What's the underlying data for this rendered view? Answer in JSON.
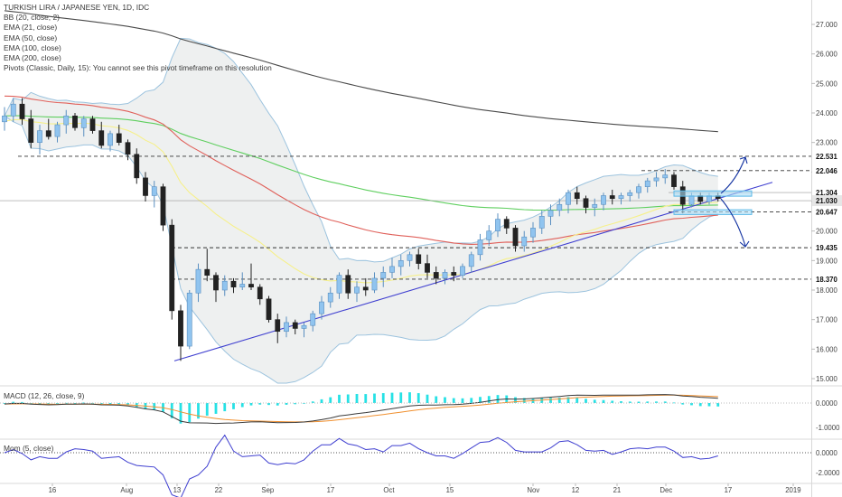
{
  "legend": {
    "title": "TURKISH LIRA / JAPANESE YEN, 1D, IDC",
    "bb": "BB (20, close, 2)",
    "ema21": "EMA (21, close)",
    "ema50": "EMA (50, close)",
    "ema100": "EMA (100, close)",
    "ema200": "EMA (200, close)",
    "pivots": "Pivots (Classic, Daily, 15): You cannot see this pivot timeframe on this resolution"
  },
  "macd_title": "MACD (12, 26, close, 9)",
  "mom_title": "Mom (5, close)",
  "colors": {
    "up_candle": "#90c4ef",
    "down_candle": "#222222",
    "ema21": "#f6f08a",
    "ema50": "#e0605a",
    "ema100": "#5fcf5f",
    "ema200": "#4a4a4a",
    "bb_band": "#9cc3de",
    "bb_fill": "#eef0f0",
    "trendline": "#3f3fd0",
    "macd_hist": "#27e1e5",
    "macd_line": "#3a3a3a",
    "signal_line": "#f09030",
    "mom_line": "#3f3fd0",
    "arrow": "#1030a0",
    "box": "#5ab8e8"
  },
  "chart_data": [
    {
      "type": "candlestick",
      "title": "TURKISH LIRA / JAPANESE YEN, 1D, IDC",
      "x_tick_labels": [
        "16",
        "Aug",
        "13",
        "22",
        "Sep",
        "17",
        "Oct",
        "15",
        "Nov",
        "12",
        "21",
        "Dec",
        "17",
        "2019"
      ],
      "y_tick_labels": [
        "27.000",
        "26.000",
        "25.000",
        "24.000",
        "23.000",
        "22.000",
        "21.000",
        "20.000",
        "19.000",
        "18.000",
        "17.000",
        "16.000",
        "15.000"
      ],
      "ylim": [
        14.8,
        27.5
      ],
      "price_levels": [
        "22.531",
        "22.046",
        "21.304",
        "21.030",
        "20.647",
        "19.435",
        "18.370"
      ],
      "candles": [
        {
          "o": 23.7,
          "h": 24.2,
          "l": 23.4,
          "c": 23.9
        },
        {
          "o": 23.9,
          "h": 24.5,
          "l": 23.7,
          "c": 24.3
        },
        {
          "o": 24.3,
          "h": 24.5,
          "l": 23.6,
          "c": 23.8
        },
        {
          "o": 23.8,
          "h": 24.1,
          "l": 22.8,
          "c": 23.0
        },
        {
          "o": 23.0,
          "h": 23.6,
          "l": 22.6,
          "c": 23.4
        },
        {
          "o": 23.4,
          "h": 23.8,
          "l": 23.1,
          "c": 23.2
        },
        {
          "o": 23.2,
          "h": 23.7,
          "l": 23.0,
          "c": 23.6
        },
        {
          "o": 23.6,
          "h": 24.1,
          "l": 23.3,
          "c": 23.9
        },
        {
          "o": 23.9,
          "h": 24.0,
          "l": 23.4,
          "c": 23.5
        },
        {
          "o": 23.5,
          "h": 23.9,
          "l": 23.2,
          "c": 23.8
        },
        {
          "o": 23.8,
          "h": 23.9,
          "l": 23.3,
          "c": 23.4
        },
        {
          "o": 23.4,
          "h": 23.7,
          "l": 22.8,
          "c": 22.9
        },
        {
          "o": 22.9,
          "h": 23.4,
          "l": 22.7,
          "c": 23.3
        },
        {
          "o": 23.3,
          "h": 23.6,
          "l": 22.9,
          "c": 23.0
        },
        {
          "o": 23.0,
          "h": 23.1,
          "l": 22.4,
          "c": 22.6
        },
        {
          "o": 22.6,
          "h": 22.8,
          "l": 21.6,
          "c": 21.8
        },
        {
          "o": 21.8,
          "h": 22.0,
          "l": 21.0,
          "c": 21.2
        },
        {
          "o": 21.2,
          "h": 21.7,
          "l": 20.8,
          "c": 21.5
        },
        {
          "o": 21.5,
          "h": 21.6,
          "l": 20.0,
          "c": 20.2
        },
        {
          "o": 20.2,
          "h": 20.4,
          "l": 17.0,
          "c": 17.3
        },
        {
          "o": 17.3,
          "h": 17.5,
          "l": 15.6,
          "c": 16.1
        },
        {
          "o": 16.1,
          "h": 18.0,
          "l": 16.0,
          "c": 17.9
        },
        {
          "o": 17.9,
          "h": 18.9,
          "l": 17.6,
          "c": 18.7
        },
        {
          "o": 18.7,
          "h": 19.4,
          "l": 18.3,
          "c": 18.5
        },
        {
          "o": 18.5,
          "h": 18.6,
          "l": 17.6,
          "c": 18.0
        },
        {
          "o": 18.0,
          "h": 18.5,
          "l": 17.8,
          "c": 18.3
        },
        {
          "o": 18.3,
          "h": 18.4,
          "l": 17.9,
          "c": 18.1
        },
        {
          "o": 18.1,
          "h": 18.6,
          "l": 18.0,
          "c": 18.2
        },
        {
          "o": 18.2,
          "h": 18.9,
          "l": 18.0,
          "c": 18.1
        },
        {
          "o": 18.1,
          "h": 18.2,
          "l": 17.5,
          "c": 17.7
        },
        {
          "o": 17.7,
          "h": 17.8,
          "l": 16.9,
          "c": 17.0
        },
        {
          "o": 17.0,
          "h": 17.2,
          "l": 16.2,
          "c": 16.6
        },
        {
          "o": 16.6,
          "h": 17.1,
          "l": 16.4,
          "c": 16.9
        },
        {
          "o": 16.9,
          "h": 17.0,
          "l": 16.5,
          "c": 16.7
        },
        {
          "o": 16.7,
          "h": 16.9,
          "l": 16.4,
          "c": 16.8
        },
        {
          "o": 16.8,
          "h": 17.3,
          "l": 16.6,
          "c": 17.2
        },
        {
          "o": 17.2,
          "h": 17.8,
          "l": 17.0,
          "c": 17.6
        },
        {
          "o": 17.6,
          "h": 18.1,
          "l": 17.4,
          "c": 17.9
        },
        {
          "o": 17.9,
          "h": 18.6,
          "l": 17.7,
          "c": 18.5
        },
        {
          "o": 18.5,
          "h": 18.7,
          "l": 17.7,
          "c": 17.9
        },
        {
          "o": 17.9,
          "h": 18.3,
          "l": 17.6,
          "c": 18.1
        },
        {
          "o": 18.1,
          "h": 18.4,
          "l": 17.8,
          "c": 18.0
        },
        {
          "o": 18.0,
          "h": 18.6,
          "l": 17.9,
          "c": 18.4
        },
        {
          "o": 18.4,
          "h": 18.8,
          "l": 18.1,
          "c": 18.6
        },
        {
          "o": 18.6,
          "h": 19.1,
          "l": 18.4,
          "c": 18.8
        },
        {
          "o": 18.8,
          "h": 19.2,
          "l": 18.5,
          "c": 19.0
        },
        {
          "o": 19.0,
          "h": 19.3,
          "l": 18.8,
          "c": 19.2
        },
        {
          "o": 19.2,
          "h": 19.4,
          "l": 18.7,
          "c": 18.9
        },
        {
          "o": 18.9,
          "h": 19.2,
          "l": 18.4,
          "c": 18.6
        },
        {
          "o": 18.6,
          "h": 18.8,
          "l": 18.2,
          "c": 18.4
        },
        {
          "o": 18.4,
          "h": 18.7,
          "l": 18.2,
          "c": 18.6
        },
        {
          "o": 18.6,
          "h": 18.8,
          "l": 18.3,
          "c": 18.5
        },
        {
          "o": 18.5,
          "h": 18.9,
          "l": 18.4,
          "c": 18.8
        },
        {
          "o": 18.8,
          "h": 19.3,
          "l": 18.6,
          "c": 19.2
        },
        {
          "o": 19.2,
          "h": 19.9,
          "l": 19.0,
          "c": 19.7
        },
        {
          "o": 19.7,
          "h": 20.2,
          "l": 19.5,
          "c": 20.0
        },
        {
          "o": 20.0,
          "h": 20.6,
          "l": 19.8,
          "c": 20.4
        },
        {
          "o": 20.4,
          "h": 20.5,
          "l": 19.9,
          "c": 20.1
        },
        {
          "o": 20.1,
          "h": 20.2,
          "l": 19.3,
          "c": 19.5
        },
        {
          "o": 19.5,
          "h": 20.0,
          "l": 19.3,
          "c": 19.8
        },
        {
          "o": 19.8,
          "h": 20.3,
          "l": 19.6,
          "c": 20.1
        },
        {
          "o": 20.1,
          "h": 20.7,
          "l": 19.9,
          "c": 20.5
        },
        {
          "o": 20.5,
          "h": 20.9,
          "l": 20.2,
          "c": 20.7
        },
        {
          "o": 20.7,
          "h": 21.1,
          "l": 20.5,
          "c": 20.9
        },
        {
          "o": 20.9,
          "h": 21.4,
          "l": 20.6,
          "c": 21.3
        },
        {
          "o": 21.3,
          "h": 21.5,
          "l": 20.9,
          "c": 21.1
        },
        {
          "o": 21.1,
          "h": 21.2,
          "l": 20.6,
          "c": 20.8
        },
        {
          "o": 20.8,
          "h": 21.1,
          "l": 20.5,
          "c": 20.9
        },
        {
          "o": 20.9,
          "h": 21.3,
          "l": 20.7,
          "c": 21.2
        },
        {
          "o": 21.2,
          "h": 21.4,
          "l": 20.9,
          "c": 21.1
        },
        {
          "o": 21.1,
          "h": 21.3,
          "l": 20.9,
          "c": 21.2
        },
        {
          "o": 21.2,
          "h": 21.4,
          "l": 21.0,
          "c": 21.3
        },
        {
          "o": 21.3,
          "h": 21.6,
          "l": 21.1,
          "c": 21.5
        },
        {
          "o": 21.5,
          "h": 21.8,
          "l": 21.3,
          "c": 21.7
        },
        {
          "o": 21.7,
          "h": 22.0,
          "l": 21.5,
          "c": 21.8
        },
        {
          "o": 21.8,
          "h": 22.1,
          "l": 21.6,
          "c": 21.9
        },
        {
          "o": 21.9,
          "h": 22.0,
          "l": 21.4,
          "c": 21.5
        },
        {
          "o": 21.5,
          "h": 21.7,
          "l": 20.6,
          "c": 20.9
        },
        {
          "o": 20.9,
          "h": 21.3,
          "l": 20.8,
          "c": 21.2
        },
        {
          "o": 21.2,
          "h": 21.3,
          "l": 20.9,
          "c": 21.0
        },
        {
          "o": 21.0,
          "h": 21.3,
          "l": 20.9,
          "c": 21.2
        },
        {
          "o": 21.2,
          "h": 21.3,
          "l": 21.0,
          "c": 21.1
        }
      ]
    },
    {
      "type": "line",
      "title": "MACD (12, 26, close, 9)",
      "y_tick_labels": [
        "0.0000",
        "-1.0000"
      ],
      "ylim": [
        -1.6,
        0.7
      ]
    },
    {
      "type": "line",
      "title": "Mom (5, close)",
      "y_tick_labels": [
        "0.0000",
        "-2.0000"
      ],
      "ylim": [
        -3.2,
        1.2
      ]
    }
  ]
}
